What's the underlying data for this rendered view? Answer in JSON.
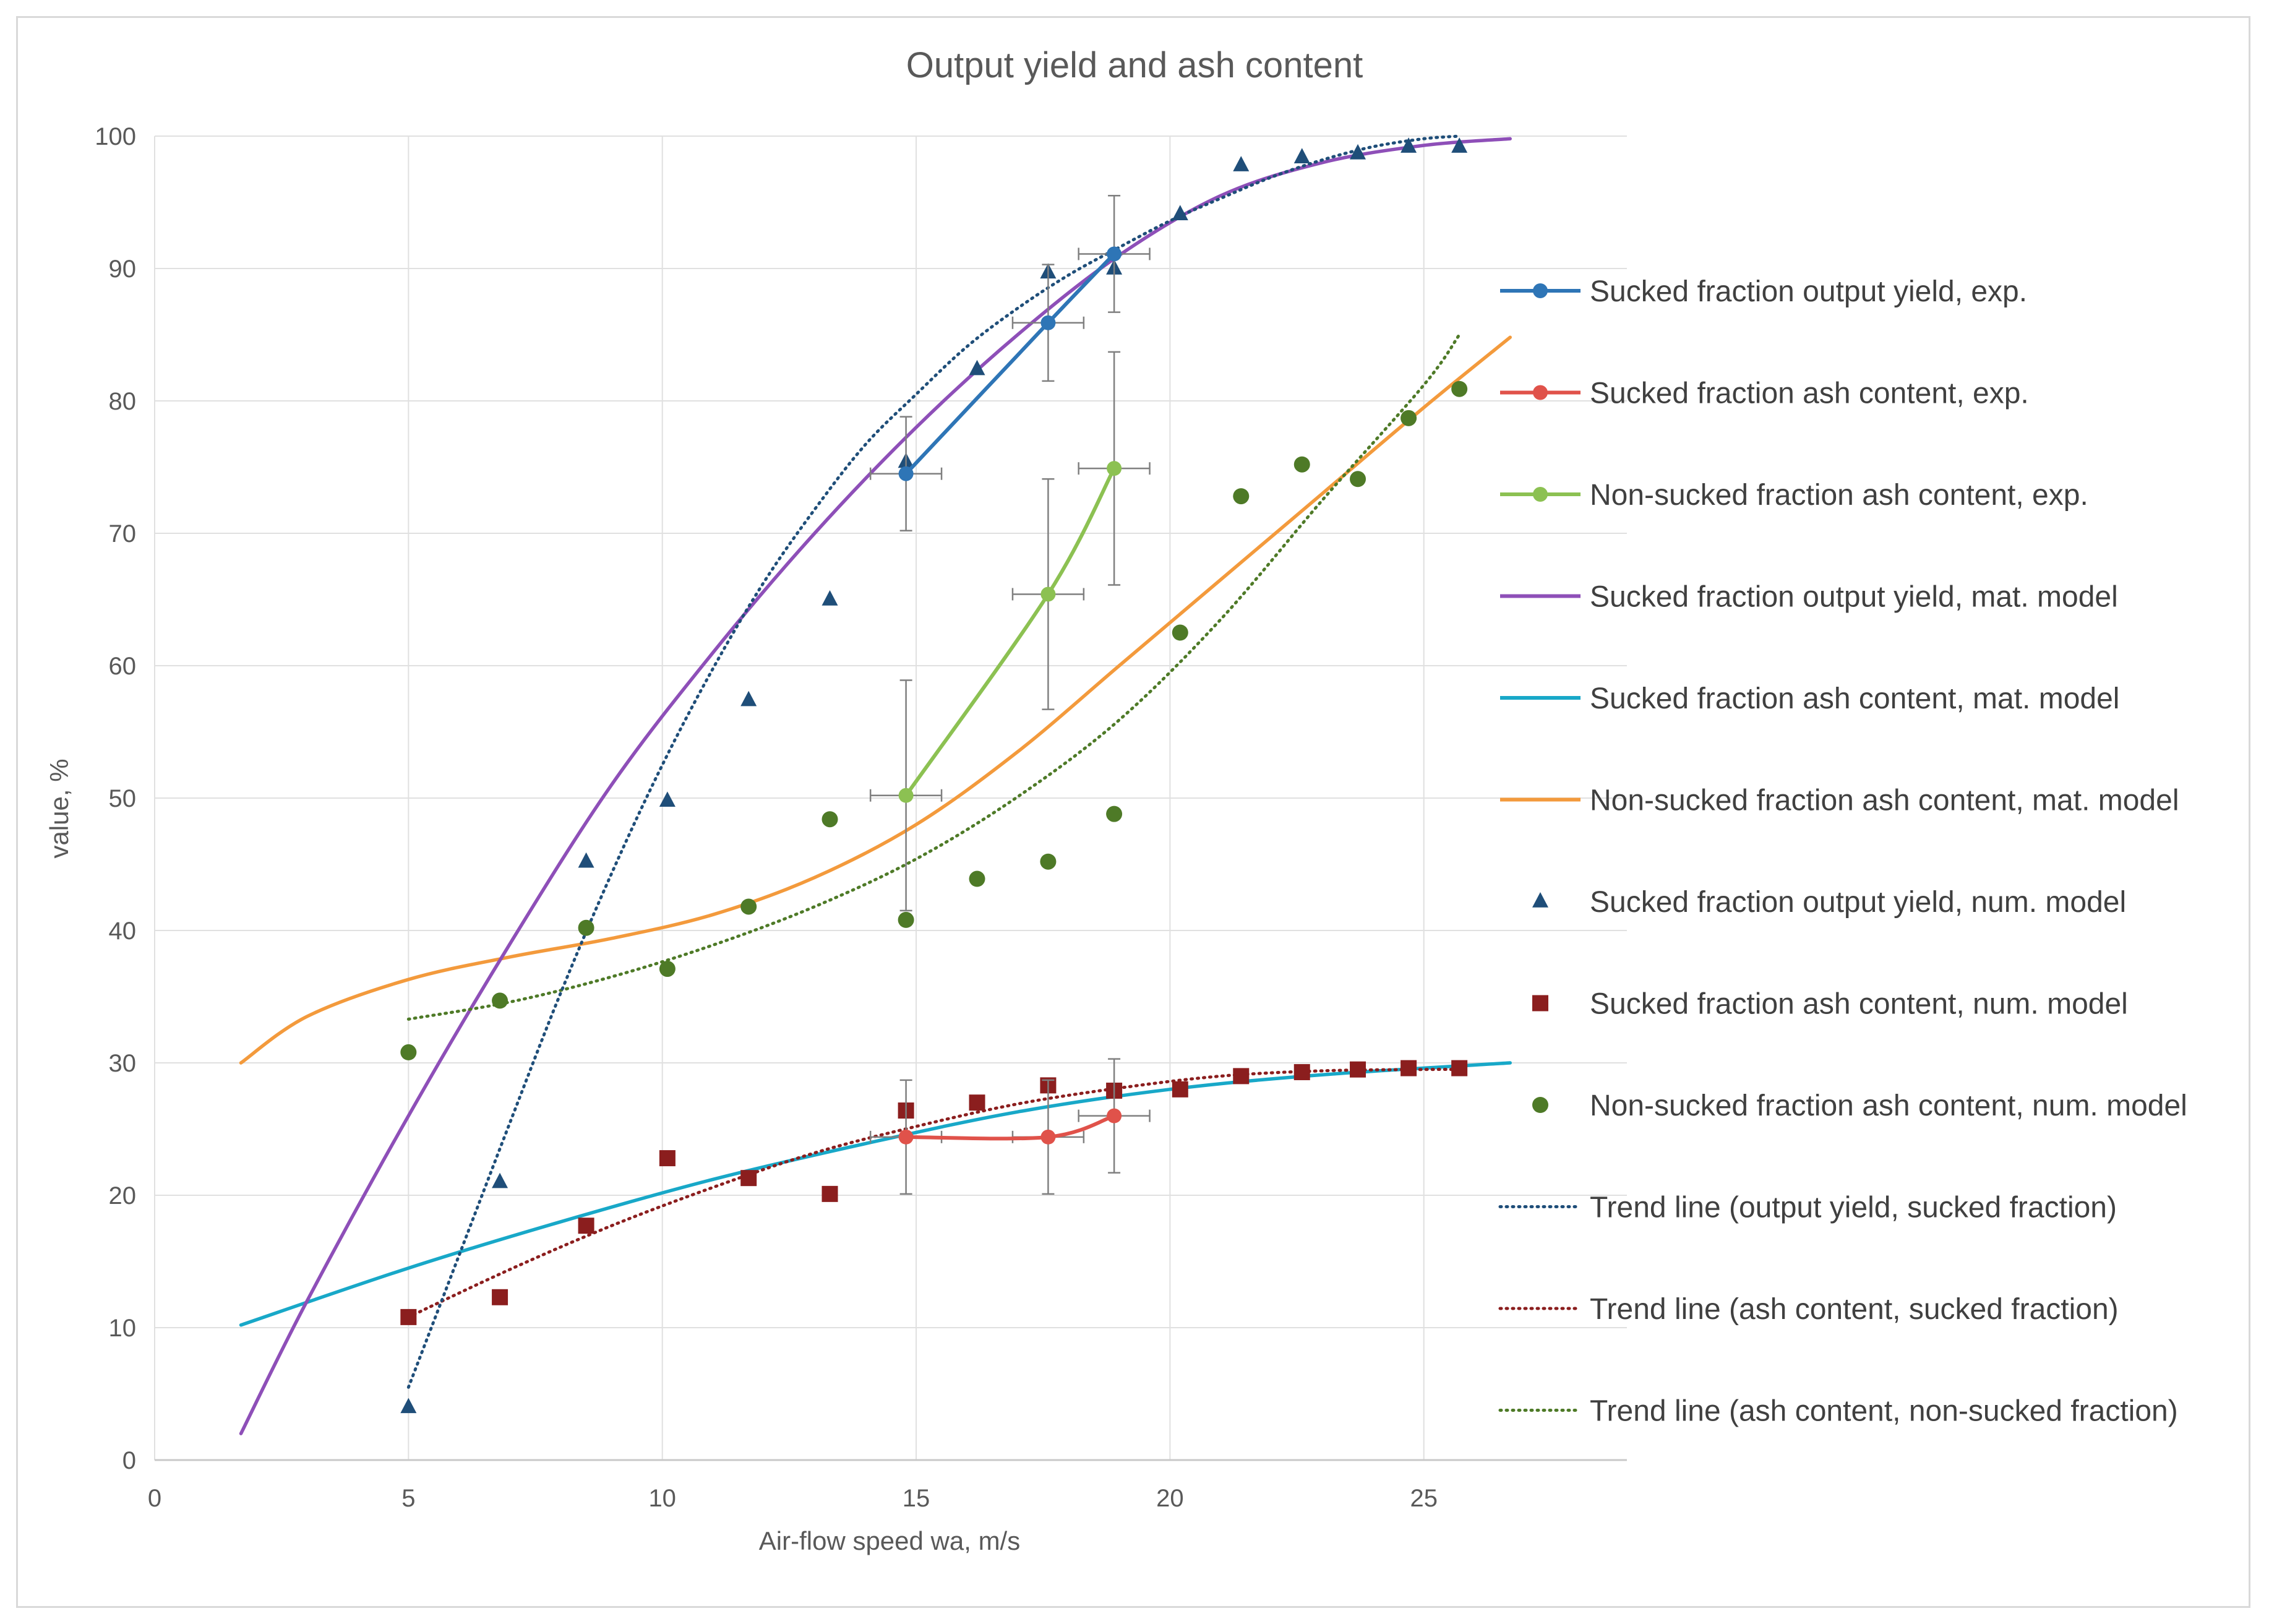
{
  "chart_data": {
    "type": "scatter",
    "title": "Output yield and ash content",
    "xlabel": "Air-flow speed wa, m/s",
    "ylabel": "value, %",
    "xlim": [
      0,
      29
    ],
    "ylim": [
      0,
      100
    ],
    "xticks": [
      0,
      5,
      10,
      15,
      20,
      25
    ],
    "yticks": [
      0,
      10,
      20,
      30,
      40,
      50,
      60,
      70,
      80,
      90,
      100
    ],
    "grid": true,
    "legend_position": "right",
    "colors": {
      "exp_yield": "#2e75b6",
      "exp_ash_sucked": "#e0524a",
      "exp_ash_nonsucked": "#8cc152",
      "mat_yield": "#8e4fb8",
      "mat_ash_sucked": "#18a8c8",
      "mat_ash_nonsucked": "#f39a3c",
      "num_yield": "#1f4e79",
      "num_ash_sucked": "#8b1e1e",
      "num_ash_nonsucked": "#4e7a27",
      "trend_yield": "#1f4e79",
      "trend_ash_sucked": "#8b1e1e",
      "trend_ash_nonsucked": "#4e7a27",
      "error_bars": "#7f7f7f"
    },
    "series": [
      {
        "key": "exp_yield",
        "name": "Sucked fraction output yield, exp.",
        "style": "line-marker",
        "marker": "circle",
        "x": [
          14.8,
          17.6,
          18.9
        ],
        "y": [
          74.5,
          85.9,
          91.1
        ],
        "xerr": [
          0.7,
          0.7,
          0.7
        ],
        "yerr": [
          4.3,
          4.4,
          4.4
        ]
      },
      {
        "key": "exp_ash_sucked",
        "name": "Sucked fraction ash content, exp.",
        "style": "line-marker",
        "marker": "circle",
        "x": [
          14.8,
          17.6,
          18.9
        ],
        "y": [
          24.4,
          24.4,
          26.0
        ],
        "xerr": [
          0.7,
          0.7,
          0.7
        ],
        "yerr": [
          4.3,
          4.3,
          4.3
        ]
      },
      {
        "key": "exp_ash_nonsucked",
        "name": "Non-sucked fraction ash content, exp.",
        "style": "line-marker",
        "marker": "circle",
        "x": [
          14.8,
          17.6,
          18.9
        ],
        "y": [
          50.2,
          65.4,
          74.9
        ],
        "xerr": [
          0.7,
          0.7,
          0.7
        ],
        "yerr": [
          8.7,
          8.7,
          8.8
        ]
      },
      {
        "key": "mat_yield",
        "name": "Sucked fraction output yield, mat. model",
        "style": "line",
        "x": [
          1.7,
          3,
          5,
          7,
          9,
          11,
          13,
          15,
          17,
          19,
          21,
          23,
          25,
          26.7
        ],
        "y": [
          2,
          12,
          26,
          39,
          51,
          61,
          70,
          78,
          85,
          91,
          95.5,
          98,
          99.3,
          99.8
        ]
      },
      {
        "key": "mat_ash_sucked",
        "name": "Sucked fraction ash content, mat. model",
        "style": "line",
        "x": [
          1.7,
          5,
          8,
          11,
          14,
          17,
          20,
          23,
          26.7
        ],
        "y": [
          10.2,
          14.5,
          18,
          21.2,
          23.9,
          26.3,
          28,
          29.1,
          30
        ]
      },
      {
        "key": "mat_ash_nonsucked",
        "name": "Non-sucked fraction ash content, mat. model",
        "style": "line",
        "x": [
          1.7,
          3,
          5,
          7,
          9,
          11,
          13,
          15,
          17,
          19,
          21,
          23,
          25,
          26.7
        ],
        "y": [
          30,
          33.5,
          36.3,
          38,
          39.4,
          41.2,
          44,
          48,
          53.5,
          60,
          66.5,
          73,
          79.5,
          84.8
        ]
      },
      {
        "key": "num_yield",
        "name": "Sucked fraction output yield, num. model",
        "style": "marker",
        "marker": "triangle",
        "x": [
          5.0,
          6.8,
          8.5,
          10.1,
          11.7,
          13.3,
          14.8,
          16.2,
          17.6,
          18.9,
          20.2,
          21.4,
          22.6,
          23.7,
          24.7,
          25.7
        ],
        "y": [
          4.0,
          21.0,
          45.2,
          49.8,
          57.4,
          65.0,
          75.4,
          82.4,
          89.7,
          90.0,
          94.1,
          97.8,
          98.4,
          98.7,
          99.2,
          99.2
        ]
      },
      {
        "key": "num_ash_sucked",
        "name": "Sucked fraction ash content, num. model",
        "style": "marker",
        "marker": "square",
        "x": [
          5.0,
          6.8,
          8.5,
          10.1,
          11.7,
          13.3,
          14.8,
          16.2,
          17.6,
          18.9,
          20.2,
          21.4,
          22.6,
          23.7,
          24.7,
          25.7
        ],
        "y": [
          10.8,
          12.3,
          17.7,
          22.8,
          21.3,
          20.1,
          26.4,
          27.0,
          28.3,
          27.9,
          28.0,
          29.0,
          29.3,
          29.5,
          29.6,
          29.6
        ]
      },
      {
        "key": "num_ash_nonsucked",
        "name": "Non-sucked fraction ash content, num. model",
        "style": "marker",
        "marker": "circle",
        "x": [
          5.0,
          6.8,
          8.5,
          10.1,
          11.7,
          13.3,
          14.8,
          16.2,
          17.6,
          18.9,
          20.2,
          21.4,
          22.6,
          23.7,
          24.7,
          25.7
        ],
        "y": [
          30.8,
          34.7,
          40.2,
          37.1,
          41.8,
          48.4,
          40.8,
          43.9,
          45.2,
          48.8,
          62.5,
          72.8,
          75.2,
          74.1,
          78.7,
          80.9
        ]
      },
      {
        "key": "trend_yield",
        "name": "Trend line (output yield, sucked fraction)",
        "style": "dotted",
        "x": [
          5,
          6,
          7,
          8,
          9,
          10,
          11,
          12,
          13,
          14,
          15,
          16,
          17,
          18,
          19,
          20,
          21,
          22,
          23,
          24,
          25,
          25.7
        ],
        "y": [
          5.5,
          15.5,
          25.5,
          35.3,
          44.3,
          52.5,
          59.8,
          66.3,
          71.8,
          76.7,
          80.5,
          84.1,
          87,
          89.5,
          91.6,
          93.6,
          95.3,
          96.9,
          98.2,
          99.2,
          99.8,
          100
        ]
      },
      {
        "key": "trend_ash_sucked",
        "name": "Trend line (ash content, sucked fraction)",
        "style": "dotted",
        "x": [
          5,
          7,
          9,
          11,
          13,
          15,
          17,
          19,
          21,
          23,
          25,
          25.7
        ],
        "y": [
          10.8,
          14.4,
          17.7,
          20.6,
          23.2,
          25.2,
          26.9,
          28.1,
          29,
          29.4,
          29.5,
          29.5
        ]
      },
      {
        "key": "trend_ash_nonsucked",
        "name": "Trend line (ash content, non-sucked fraction)",
        "style": "dotted",
        "x": [
          5,
          7,
          9,
          11,
          13,
          15,
          17,
          19,
          21,
          23,
          25,
          25.7
        ],
        "y": [
          33.3,
          34.6,
          36.5,
          38.9,
          41.8,
          45.4,
          50.1,
          55.9,
          63.5,
          72.5,
          81.2,
          85
        ]
      }
    ]
  }
}
